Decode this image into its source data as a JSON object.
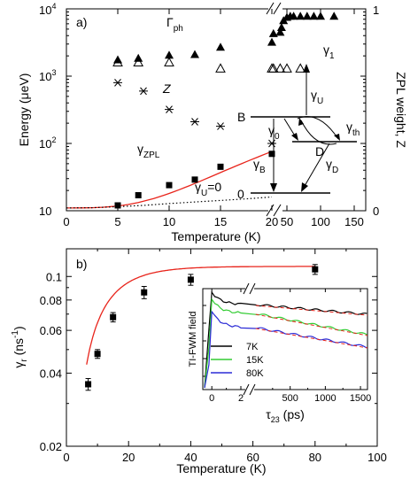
{
  "chart_data": [
    {
      "panel_label": "a)",
      "type": "scatter",
      "xlabel": "Temperature (K)",
      "ylabel": "Energy (μeV)",
      "y2label": "ZPL weight, Z",
      "x_scale": "linear, broken axis after 20 K",
      "y_scale": "log",
      "xlim_segment1": [
        0,
        20
      ],
      "xlim_segment2_ticks": [
        50,
        100,
        150
      ],
      "ylim": [
        10,
        10000
      ],
      "x_ticks": [
        "0",
        "5",
        "10",
        "15",
        "20",
        "50",
        "100",
        "150"
      ],
      "y_ticks": [
        "10",
        "10^2",
        "10^3",
        "10^4"
      ],
      "y2_ticks": [
        "0",
        "1"
      ],
      "series": [
        {
          "label": "Γph",
          "label_main": "Γ",
          "label_sub": "ph",
          "marker": "filled-triangle",
          "x": [
            5,
            7,
            10,
            12.5,
            15,
            20,
            30,
            40,
            42,
            45,
            50,
            55,
            60,
            70,
            80,
            90,
            100,
            120
          ],
          "y": [
            1750,
            1850,
            2050,
            2100,
            2700,
            3200,
            4300,
            4500,
            5300,
            6700,
            7500,
            7800,
            7800,
            7800,
            7800,
            7800,
            7800,
            7800
          ]
        },
        {
          "label": "γ1",
          "label_main": "γ",
          "label_sub": "1",
          "marker": "open-triangle",
          "x": [
            5,
            7,
            10,
            15,
            20,
            30,
            40,
            50,
            70
          ],
          "y": [
            1600,
            1600,
            1600,
            1300,
            1300,
            1300,
            1300,
            1300,
            1300
          ]
        },
        {
          "label": "Z",
          "marker": "asterisk",
          "axis": "right",
          "x": [
            5,
            7.5,
            10,
            12.5,
            15,
            20
          ],
          "y_on_left_scale": [
            800,
            600,
            320,
            210,
            180,
            100
          ]
        },
        {
          "label": "γZPL",
          "label_main": "γ",
          "label_sub": "ZPL",
          "marker": "filled-square",
          "x": [
            5,
            7,
            10,
            12.5,
            15,
            20
          ],
          "y": [
            12,
            17,
            24,
            29,
            45,
            70
          ],
          "fit_curve_color": "#e8241b"
        },
        {
          "label": "γU=0",
          "label_main": "γ",
          "label_sub": "U",
          "label_tail": "=0",
          "style": "dotted-line",
          "x": [
            0,
            2.5,
            5,
            7.5,
            10,
            12.5,
            15,
            17.5,
            20
          ],
          "y": [
            11,
            11.1,
            11.5,
            12.0,
            12.8,
            13.5,
            14.2,
            15.0,
            16.0
          ]
        }
      ],
      "level_diagram": {
        "levels": [
          "B",
          "D",
          "0"
        ],
        "rates": [
          {
            "main": "γ",
            "sub": "U"
          },
          {
            "main": "γ",
            "sub": "0"
          },
          {
            "main": "γ",
            "sub": "th"
          },
          {
            "main": "γ",
            "sub": "B"
          },
          {
            "main": "γ",
            "sub": "D"
          }
        ]
      }
    },
    {
      "panel_label": "b)",
      "type": "scatter",
      "xlabel": "Temperature (K)",
      "ylabel": "γr (ns⁻¹)",
      "ylabel_main": "γ",
      "ylabel_sub": "r",
      "ylabel_tail": " (ns",
      "ylabel_sup": "-1",
      "ylabel_end": ")",
      "y_scale": "log",
      "xlim": [
        0,
        100
      ],
      "ylim": [
        0.02,
        0.13
      ],
      "x_ticks": [
        "0",
        "20",
        "40",
        "60",
        "80",
        "100"
      ],
      "y_ticks": [
        "0.02",
        "0.04",
        "0.06",
        "0.08",
        "0.1"
      ],
      "series": [
        {
          "label": "γr",
          "marker": "filled-square-errorbar",
          "x": [
            7,
            10,
            15,
            25,
            40,
            80
          ],
          "y": [
            0.036,
            0.048,
            0.068,
            0.086,
            0.097,
            0.107
          ],
          "err": [
            0.002,
            0.002,
            0.003,
            0.005,
            0.005,
            0.005
          ],
          "fit_curve_color": "#e8241b"
        }
      ],
      "inset": {
        "type": "line",
        "xlabel": "τ23 (ps)",
        "xlabel_main": "τ",
        "xlabel_sub": "23",
        "xlabel_tail": " (ps)",
        "ylabel": "TI-FWM field",
        "y_scale": "log",
        "x_ticks": [
          "0",
          "2",
          "500",
          "1000",
          "1500"
        ],
        "legend": [
          {
            "name": "7K",
            "color": "#000000"
          },
          {
            "name": "15K",
            "color": "#33cc33"
          },
          {
            "name": "80K",
            "color": "#2b2bd6"
          }
        ]
      }
    }
  ]
}
